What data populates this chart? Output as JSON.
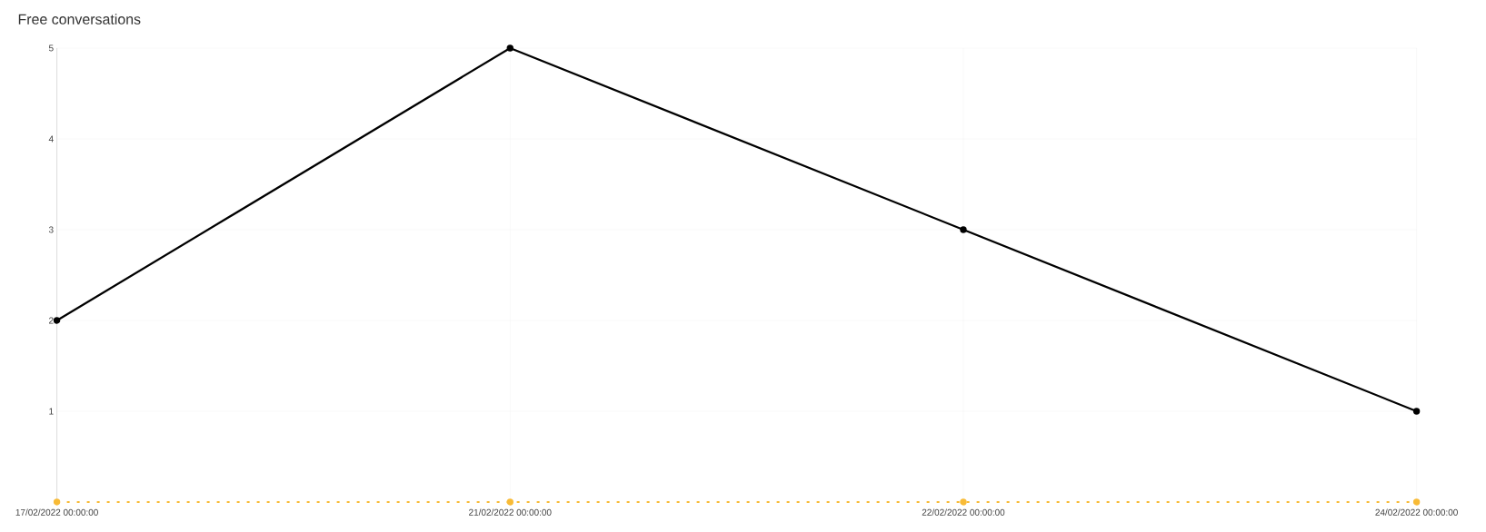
{
  "chart_data": {
    "type": "line",
    "title": "Free conversations",
    "categories": [
      "17/02/2022 00:00:00",
      "21/02/2022 00:00:00",
      "22/02/2022 00:00:00",
      "24/02/2022 00:00:00"
    ],
    "series": [
      {
        "color": "#000000",
        "values": [
          2,
          5,
          3,
          1
        ],
        "line_style": "solid"
      },
      {
        "color": "#f8bb37",
        "values": [
          0,
          0,
          0,
          0
        ],
        "line_style": "dashed"
      }
    ],
    "ylim": [
      0,
      5
    ],
    "yticks": [
      1,
      2,
      3,
      4,
      5
    ],
    "grid": true,
    "marker": "circle"
  }
}
